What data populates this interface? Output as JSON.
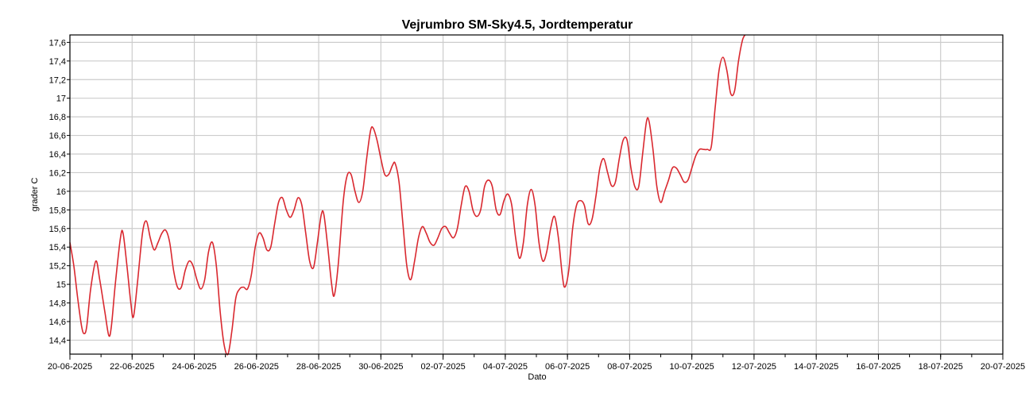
{
  "chart_data": {
    "type": "line",
    "title": "Vejrumbro SM-Sky4.5, Jordtemperatur",
    "xlabel": "Dato",
    "ylabel": "grader C",
    "x_tick_labels": [
      "20-06-2025",
      "22-06-2025",
      "24-06-2025",
      "26-06-2025",
      "28-06-2025",
      "30-06-2025",
      "02-07-2025",
      "04-07-2025",
      "06-07-2025",
      "08-07-2025",
      "10-07-2025",
      "12-07-2025",
      "14-07-2025",
      "16-07-2025",
      "18-07-2025",
      "20-07-2025"
    ],
    "y_tick_labels": [
      "14,4",
      "14,6",
      "14,8",
      "15",
      "15,2",
      "15,4",
      "15,6",
      "15,8",
      "16",
      "16,2",
      "16,4",
      "16,6",
      "16,8",
      "17",
      "17,2",
      "17,4",
      "17,6"
    ],
    "xlim": [
      "2025-06-20",
      "2025-07-20"
    ],
    "ylim": [
      14.25,
      17.68
    ],
    "grid": true,
    "colors": {
      "series": "#d9282f",
      "grid": "#cccccc"
    },
    "series": [
      {
        "points": [
          [
            "2025-06-20 00:00",
            15.45
          ],
          [
            "2025-06-20 03:00",
            15.2
          ],
          [
            "2025-06-20 06:00",
            14.85
          ],
          [
            "2025-06-20 09:00",
            14.55
          ],
          [
            "2025-06-20 11:00",
            14.47
          ],
          [
            "2025-06-20 13:00",
            14.55
          ],
          [
            "2025-06-20 16:00",
            14.95
          ],
          [
            "2025-06-20 20:00",
            15.25
          ],
          [
            "2025-06-20 23:00",
            15.05
          ],
          [
            "2025-06-21 03:00",
            14.7
          ],
          [
            "2025-06-21 06:00",
            14.45
          ],
          [
            "2025-06-21 08:00",
            14.55
          ],
          [
            "2025-06-21 11:00",
            15.0
          ],
          [
            "2025-06-21 15:00",
            15.5
          ],
          [
            "2025-06-21 17:00",
            15.55
          ],
          [
            "2025-06-21 20:00",
            15.2
          ],
          [
            "2025-06-21 23:00",
            14.8
          ],
          [
            "2025-06-22 01:00",
            14.65
          ],
          [
            "2025-06-22 04:00",
            15.0
          ],
          [
            "2025-06-22 08:00",
            15.55
          ],
          [
            "2025-06-22 11:00",
            15.68
          ],
          [
            "2025-06-22 14:00",
            15.5
          ],
          [
            "2025-06-22 17:00",
            15.37
          ],
          [
            "2025-06-22 20:00",
            15.45
          ],
          [
            "2025-06-22 23:00",
            15.55
          ],
          [
            "2025-06-23 02:00",
            15.58
          ],
          [
            "2025-06-23 05:00",
            15.45
          ],
          [
            "2025-06-23 08:00",
            15.15
          ],
          [
            "2025-06-23 11:00",
            14.97
          ],
          [
            "2025-06-23 14:00",
            14.97
          ],
          [
            "2025-06-23 17:00",
            15.15
          ],
          [
            "2025-06-23 20:00",
            15.25
          ],
          [
            "2025-06-23 23:00",
            15.2
          ],
          [
            "2025-06-24 02:00",
            15.05
          ],
          [
            "2025-06-24 05:00",
            14.95
          ],
          [
            "2025-06-24 08:00",
            15.05
          ],
          [
            "2025-06-24 11:00",
            15.35
          ],
          [
            "2025-06-24 14:00",
            15.45
          ],
          [
            "2025-06-24 17:00",
            15.2
          ],
          [
            "2025-06-24 20:00",
            14.7
          ],
          [
            "2025-06-24 23:00",
            14.35
          ],
          [
            "2025-06-25 02:00",
            14.25
          ],
          [
            "2025-06-25 05:00",
            14.5
          ],
          [
            "2025-06-25 08:00",
            14.85
          ],
          [
            "2025-06-25 11:00",
            14.95
          ],
          [
            "2025-06-25 14:00",
            14.97
          ],
          [
            "2025-06-25 17:00",
            14.95
          ],
          [
            "2025-06-25 20:00",
            15.1
          ],
          [
            "2025-06-25 23:00",
            15.4
          ],
          [
            "2025-06-26 02:00",
            15.55
          ],
          [
            "2025-06-26 05:00",
            15.5
          ],
          [
            "2025-06-26 08:00",
            15.37
          ],
          [
            "2025-06-26 11:00",
            15.4
          ],
          [
            "2025-06-26 14:00",
            15.65
          ],
          [
            "2025-06-26 17:00",
            15.88
          ],
          [
            "2025-06-26 20:00",
            15.93
          ],
          [
            "2025-06-26 23:00",
            15.8
          ],
          [
            "2025-06-27 02:00",
            15.72
          ],
          [
            "2025-06-27 05:00",
            15.8
          ],
          [
            "2025-06-27 08:00",
            15.93
          ],
          [
            "2025-06-27 11:00",
            15.85
          ],
          [
            "2025-06-27 14:00",
            15.55
          ],
          [
            "2025-06-27 17:00",
            15.25
          ],
          [
            "2025-06-27 20:00",
            15.18
          ],
          [
            "2025-06-27 23:00",
            15.45
          ],
          [
            "2025-06-28 02:00",
            15.75
          ],
          [
            "2025-06-28 04:00",
            15.75
          ],
          [
            "2025-06-28 07:00",
            15.4
          ],
          [
            "2025-06-28 10:00",
            15.0
          ],
          [
            "2025-06-28 12:00",
            14.88
          ],
          [
            "2025-06-28 15:00",
            15.2
          ],
          [
            "2025-06-28 19:00",
            15.9
          ],
          [
            "2025-06-28 22:00",
            16.17
          ],
          [
            "2025-06-29 01:00",
            16.18
          ],
          [
            "2025-06-29 04:00",
            16.0
          ],
          [
            "2025-06-29 07:00",
            15.88
          ],
          [
            "2025-06-29 10:00",
            16.0
          ],
          [
            "2025-06-29 13:00",
            16.35
          ],
          [
            "2025-06-29 16:00",
            16.65
          ],
          [
            "2025-06-29 18:00",
            16.68
          ],
          [
            "2025-06-29 21:00",
            16.55
          ],
          [
            "2025-06-30 00:00",
            16.35
          ],
          [
            "2025-06-30 03:00",
            16.18
          ],
          [
            "2025-06-30 06:00",
            16.18
          ],
          [
            "2025-06-30 09:00",
            16.28
          ],
          [
            "2025-06-30 11:00",
            16.3
          ],
          [
            "2025-06-30 14:00",
            16.1
          ],
          [
            "2025-06-30 17:00",
            15.65
          ],
          [
            "2025-06-30 20:00",
            15.2
          ],
          [
            "2025-06-30 23:00",
            15.05
          ],
          [
            "2025-07-01 02:00",
            15.25
          ],
          [
            "2025-07-01 05:00",
            15.5
          ],
          [
            "2025-07-01 08:00",
            15.62
          ],
          [
            "2025-07-01 11:00",
            15.55
          ],
          [
            "2025-07-01 14:00",
            15.45
          ],
          [
            "2025-07-01 17:00",
            15.42
          ],
          [
            "2025-07-01 20:00",
            15.5
          ],
          [
            "2025-07-01 23:00",
            15.6
          ],
          [
            "2025-07-02 02:00",
            15.62
          ],
          [
            "2025-07-02 05:00",
            15.55
          ],
          [
            "2025-07-02 08:00",
            15.5
          ],
          [
            "2025-07-02 11:00",
            15.6
          ],
          [
            "2025-07-02 14:00",
            15.85
          ],
          [
            "2025-07-02 17:00",
            16.05
          ],
          [
            "2025-07-02 20:00",
            16.0
          ],
          [
            "2025-07-02 23:00",
            15.8
          ],
          [
            "2025-07-03 02:00",
            15.73
          ],
          [
            "2025-07-03 05:00",
            15.8
          ],
          [
            "2025-07-03 08:00",
            16.05
          ],
          [
            "2025-07-03 11:00",
            16.12
          ],
          [
            "2025-07-03 14:00",
            16.05
          ],
          [
            "2025-07-03 17:00",
            15.8
          ],
          [
            "2025-07-03 20:00",
            15.75
          ],
          [
            "2025-07-03 23:00",
            15.9
          ],
          [
            "2025-07-04 02:00",
            15.97
          ],
          [
            "2025-07-04 05:00",
            15.85
          ],
          [
            "2025-07-04 08:00",
            15.5
          ],
          [
            "2025-07-04 11:00",
            15.28
          ],
          [
            "2025-07-04 14:00",
            15.45
          ],
          [
            "2025-07-04 17:00",
            15.85
          ],
          [
            "2025-07-04 20:00",
            16.02
          ],
          [
            "2025-07-04 23:00",
            15.85
          ],
          [
            "2025-07-05 02:00",
            15.45
          ],
          [
            "2025-07-05 05:00",
            15.25
          ],
          [
            "2025-07-05 08:00",
            15.35
          ],
          [
            "2025-07-05 11:00",
            15.6
          ],
          [
            "2025-07-05 14:00",
            15.73
          ],
          [
            "2025-07-05 17:00",
            15.5
          ],
          [
            "2025-07-05 20:00",
            15.1
          ],
          [
            "2025-07-05 22:00",
            14.97
          ],
          [
            "2025-07-06 01:00",
            15.15
          ],
          [
            "2025-07-06 04:00",
            15.6
          ],
          [
            "2025-07-06 07:00",
            15.85
          ],
          [
            "2025-07-06 10:00",
            15.9
          ],
          [
            "2025-07-06 13:00",
            15.85
          ],
          [
            "2025-07-06 16:00",
            15.65
          ],
          [
            "2025-07-06 19:00",
            15.7
          ],
          [
            "2025-07-06 22:00",
            15.95
          ],
          [
            "2025-07-07 01:00",
            16.25
          ],
          [
            "2025-07-07 04:00",
            16.35
          ],
          [
            "2025-07-07 07:00",
            16.2
          ],
          [
            "2025-07-07 10:00",
            16.06
          ],
          [
            "2025-07-07 13:00",
            16.1
          ],
          [
            "2025-07-07 16:00",
            16.35
          ],
          [
            "2025-07-07 19:00",
            16.55
          ],
          [
            "2025-07-07 22:00",
            16.55
          ],
          [
            "2025-07-08 01:00",
            16.25
          ],
          [
            "2025-07-08 04:00",
            16.05
          ],
          [
            "2025-07-08 07:00",
            16.05
          ],
          [
            "2025-07-08 10:00",
            16.4
          ],
          [
            "2025-07-08 13:00",
            16.75
          ],
          [
            "2025-07-08 15:00",
            16.75
          ],
          [
            "2025-07-08 18:00",
            16.45
          ],
          [
            "2025-07-08 21:00",
            16.05
          ],
          [
            "2025-07-09 00:00",
            15.88
          ],
          [
            "2025-07-09 03:00",
            16.0
          ],
          [
            "2025-07-09 06:00",
            16.12
          ],
          [
            "2025-07-09 09:00",
            16.25
          ],
          [
            "2025-07-09 12:00",
            16.25
          ],
          [
            "2025-07-09 15:00",
            16.18
          ],
          [
            "2025-07-09 18:00",
            16.1
          ],
          [
            "2025-07-09 21:00",
            16.12
          ],
          [
            "2025-07-10 00:00",
            16.25
          ],
          [
            "2025-07-10 03:00",
            16.38
          ],
          [
            "2025-07-10 06:00",
            16.45
          ],
          [
            "2025-07-10 09:00",
            16.45
          ],
          [
            "2025-07-10 12:00",
            16.45
          ],
          [
            "2025-07-10 15:00",
            16.48
          ],
          [
            "2025-07-10 18:00",
            16.9
          ],
          [
            "2025-07-10 21:00",
            17.3
          ],
          [
            "2025-07-11 00:00",
            17.44
          ],
          [
            "2025-07-11 03:00",
            17.3
          ],
          [
            "2025-07-11 06:00",
            17.05
          ],
          [
            "2025-07-11 09:00",
            17.08
          ],
          [
            "2025-07-11 12:00",
            17.4
          ],
          [
            "2025-07-11 15:00",
            17.62
          ],
          [
            "2025-07-11 17:00",
            17.68
          ]
        ]
      }
    ]
  }
}
